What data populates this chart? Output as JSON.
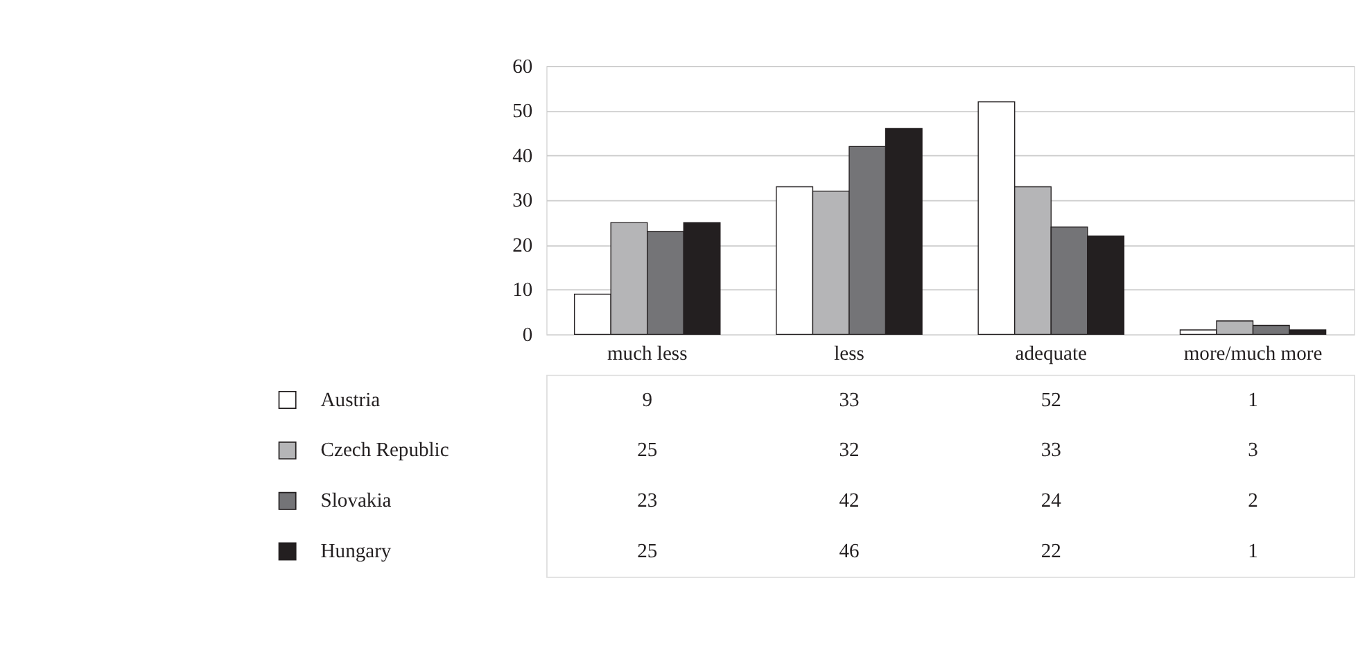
{
  "chart_data": {
    "type": "bar",
    "categories": [
      "much less",
      "less",
      "adequate",
      "more/much more"
    ],
    "series": [
      {
        "name": "Austria",
        "color": "#ffffff",
        "values": [
          9,
          33,
          52,
          1
        ]
      },
      {
        "name": "Czech Republic",
        "color": "#b5b5b7",
        "values": [
          25,
          32,
          33,
          3
        ]
      },
      {
        "name": "Slovakia",
        "color": "#747477",
        "values": [
          23,
          42,
          24,
          2
        ]
      },
      {
        "name": "Hungary",
        "color": "#231f20",
        "values": [
          25,
          46,
          22,
          1
        ]
      }
    ],
    "ylim": [
      0,
      60
    ],
    "yticks": [
      0,
      10,
      20,
      30,
      40,
      50,
      60
    ],
    "grid": "y",
    "data_labels": true,
    "legend": "bottom left"
  }
}
